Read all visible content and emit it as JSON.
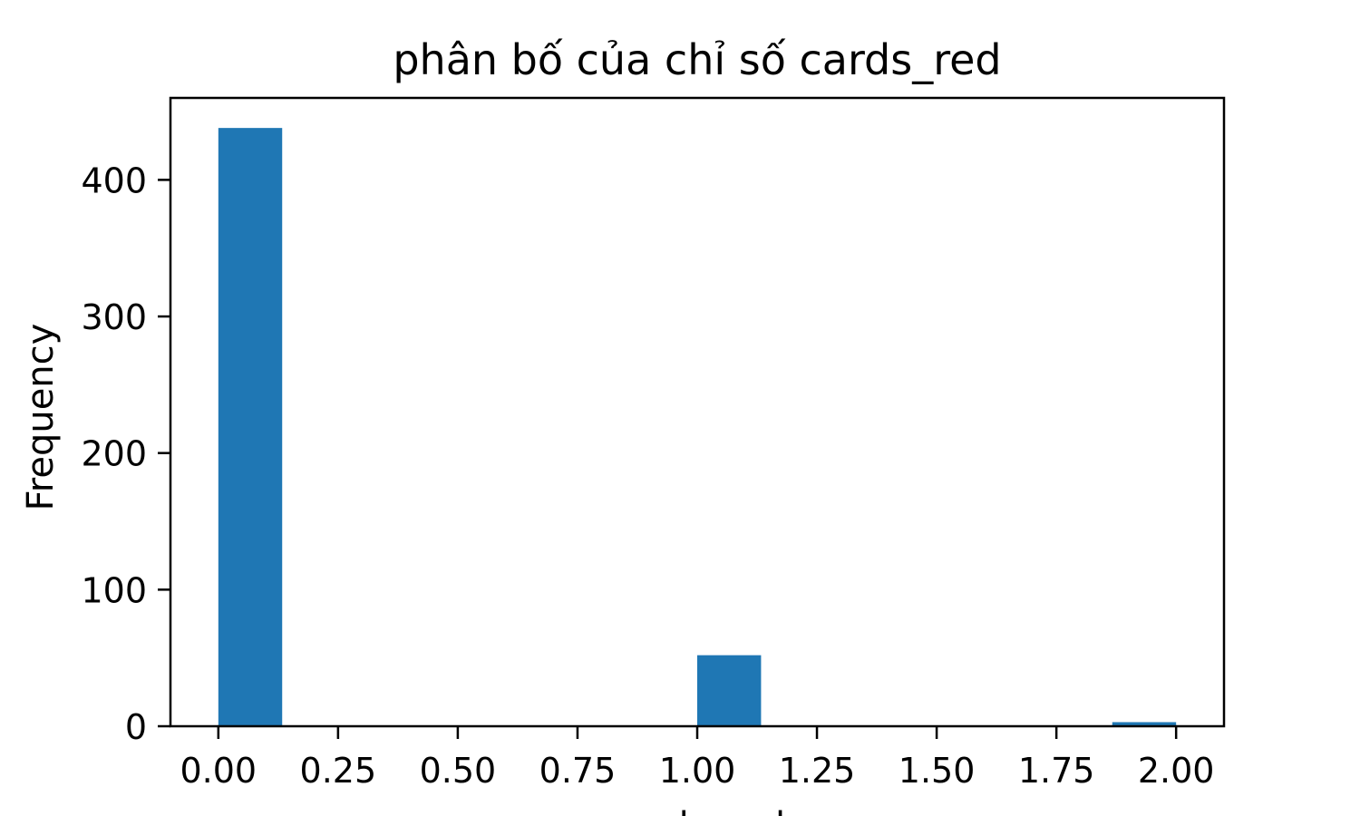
{
  "chart_data": {
    "type": "bar",
    "title": "phân bố của chỉ số cards_red",
    "xlabel": "cards_red",
    "ylabel": "Frequency",
    "xlim": [
      -0.1,
      2.1
    ],
    "ylim": [
      0,
      460
    ],
    "xticks": [
      0.0,
      0.25,
      0.5,
      0.75,
      1.0,
      1.25,
      1.5,
      1.75,
      2.0
    ],
    "xtick_labels": [
      "0.00",
      "0.25",
      "0.50",
      "0.75",
      "1.00",
      "1.25",
      "1.50",
      "1.75",
      "2.00"
    ],
    "yticks": [
      0,
      100,
      200,
      300,
      400
    ],
    "ytick_labels": [
      "0",
      "100",
      "200",
      "300",
      "400"
    ],
    "bin_width": 0.1333,
    "bars": [
      {
        "x": 0.0,
        "value": 438
      },
      {
        "x": 1.0,
        "value": 52
      },
      {
        "x": 1.8667,
        "value": 3
      }
    ],
    "grid": false,
    "bar_color": "#1f77b4"
  }
}
